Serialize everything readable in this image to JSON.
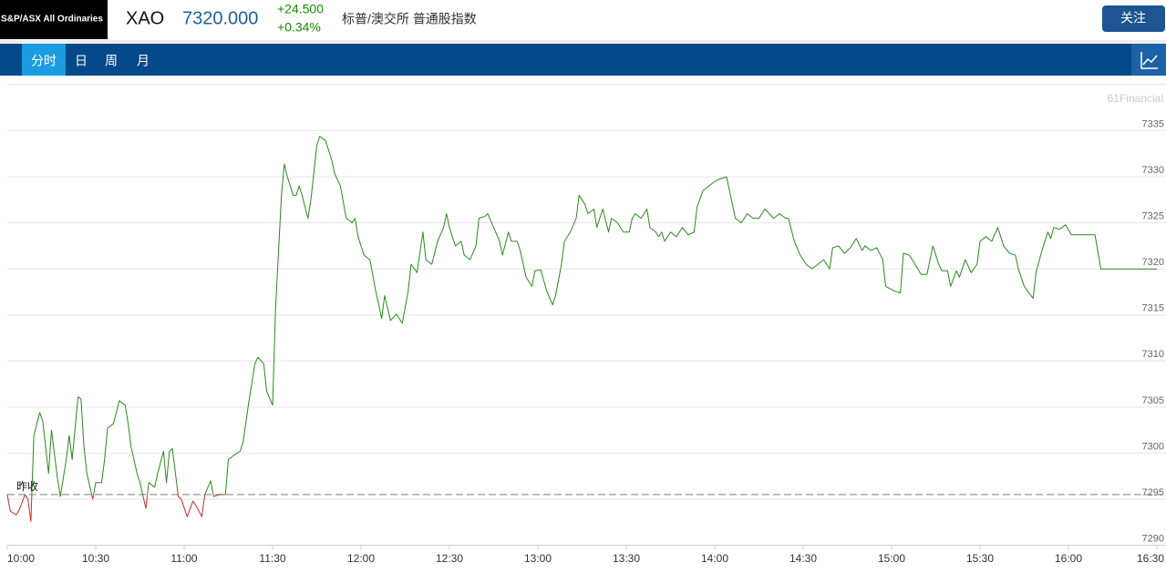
{
  "header": {
    "logo": "S&P/ASX All Ordinaries",
    "symbol": "XAO",
    "price": "7320.000",
    "change": "+24.500",
    "change_pct": "+0.34%",
    "name": "标普/澳交所 普通股指数",
    "button": "关注"
  },
  "tabs": [
    "分时",
    "日",
    "周",
    "月"
  ],
  "watermark": "61Financial",
  "chart_data": {
    "type": "line",
    "x": [
      "10:00",
      "10:01",
      "10:03",
      "10:04",
      "10:06",
      "10:07",
      "10:08",
      "10:09",
      "10:11",
      "10:12",
      "10:14",
      "10:15",
      "10:17",
      "10:18",
      "10:20",
      "10:21",
      "10:22",
      "10:24",
      "10:25",
      "10:26",
      "10:27",
      "10:29",
      "10:30",
      "10:32",
      "10:33",
      "10:34",
      "10:36",
      "10:38",
      "10:40",
      "10:41",
      "10:42",
      "10:44",
      "10:45",
      "10:47",
      "10:48",
      "10:50",
      "10:51",
      "10:53",
      "10:54",
      "10:55",
      "10:56",
      "10:58",
      "10:59",
      "11:01",
      "11:03",
      "11:04",
      "11:06",
      "11:07",
      "11:09",
      "11:10",
      "11:12",
      "11:14",
      "11:15",
      "11:17",
      "11:19",
      "11:20",
      "11:22",
      "11:24",
      "11:25",
      "11:27",
      "11:28",
      "11:30",
      "11:31",
      "11:33",
      "11:34",
      "11:35",
      "11:37",
      "11:38",
      "11:39",
      "11:40",
      "11:42",
      "11:43",
      "11:45",
      "11:46",
      "11:48",
      "11:50",
      "11:51",
      "11:53",
      "11:55",
      "11:57",
      "11:58",
      "11:59",
      "12:01",
      "12:03",
      "12:05",
      "12:07",
      "12:08",
      "12:10",
      "12:12",
      "12:14",
      "12:16",
      "12:17",
      "12:19",
      "12:21",
      "12:22",
      "12:24",
      "12:26",
      "12:28",
      "12:29",
      "12:30",
      "12:32",
      "12:34",
      "12:35",
      "12:37",
      "12:39",
      "12:40",
      "12:42",
      "12:43",
      "12:45",
      "12:47",
      "12:48",
      "12:50",
      "12:51",
      "12:53",
      "12:54",
      "12:56",
      "12:58",
      "12:59",
      "13:01",
      "13:03",
      "13:05",
      "13:06",
      "13:08",
      "13:09",
      "13:11",
      "13:13",
      "13:14",
      "13:16",
      "13:17",
      "13:19",
      "13:20",
      "13:22",
      "13:24",
      "13:25",
      "13:27",
      "13:29",
      "13:31",
      "13:32",
      "13:33",
      "13:35",
      "13:37",
      "13:38",
      "13:40",
      "13:41",
      "13:42",
      "13:43",
      "13:45",
      "13:47",
      "13:49",
      "13:51",
      "13:53",
      "13:54",
      "13:56",
      "13:58",
      "14:00",
      "14:02",
      "14:04",
      "14:05",
      "14:07",
      "14:09",
      "14:11",
      "14:13",
      "14:15",
      "14:17",
      "14:20",
      "14:22",
      "14:24",
      "14:25",
      "14:27",
      "14:29",
      "14:31",
      "14:33",
      "14:35",
      "14:37",
      "14:39",
      "14:40",
      "14:42",
      "14:44",
      "14:46",
      "14:48",
      "14:50",
      "14:51",
      "14:53",
      "14:55",
      "14:57",
      "14:58",
      "15:01",
      "15:03",
      "15:04",
      "15:06",
      "15:08",
      "15:10",
      "15:12",
      "15:14",
      "15:16",
      "15:17",
      "15:19",
      "15:20",
      "15:22",
      "15:23",
      "15:25",
      "15:27",
      "15:29",
      "15:30",
      "15:32",
      "15:34",
      "15:36",
      "15:38",
      "15:40",
      "15:42",
      "15:43",
      "15:45",
      "15:48",
      "15:49",
      "15:51",
      "15:53",
      "15:54",
      "15:55",
      "15:57",
      "15:59",
      "16:01",
      "16:09",
      "16:11",
      "16:30"
    ],
    "values": [
      7295.5,
      7293.7,
      7293.3,
      7293.8,
      7295.5,
      7295.0,
      7292.6,
      7301.9,
      7304.4,
      7303.5,
      7297.8,
      7302.5,
      7297.3,
      7295.3,
      7299.3,
      7301.9,
      7299.3,
      7306.1,
      7305.9,
      7300.7,
      7297.8,
      7295.0,
      7296.8,
      7296.8,
      7299.3,
      7302.7,
      7303.2,
      7305.7,
      7305.2,
      7303.2,
      7300.7,
      7297.8,
      7296.8,
      7294.0,
      7296.8,
      7296.3,
      7297.8,
      7300.2,
      7296.8,
      7300.2,
      7300.5,
      7295.3,
      7295.0,
      7293.1,
      7294.8,
      7294.3,
      7293.1,
      7295.5,
      7297.0,
      7295.3,
      7295.5,
      7295.5,
      7299.3,
      7299.8,
      7300.2,
      7301.2,
      7305.7,
      7309.7,
      7310.4,
      7309.7,
      7306.7,
      7305.2,
      7315.6,
      7328.0,
      7331.4,
      7330.0,
      7328.0,
      7328.0,
      7329.0,
      7328.0,
      7325.5,
      7327.5,
      7333.4,
      7334.4,
      7333.9,
      7331.9,
      7330.4,
      7329.0,
      7325.5,
      7325.0,
      7325.5,
      7323.5,
      7321.5,
      7321.0,
      7317.6,
      7314.6,
      7317.1,
      7314.4,
      7315.1,
      7314.1,
      7317.6,
      7320.5,
      7319.6,
      7324.0,
      7321.0,
      7320.5,
      7323.0,
      7324.5,
      7326.0,
      7324.5,
      7322.5,
      7323.0,
      7321.5,
      7321.0,
      7322.5,
      7325.5,
      7325.7,
      7326.0,
      7324.5,
      7323.0,
      7321.5,
      7324.0,
      7323.0,
      7323.0,
      7322.0,
      7319.1,
      7318.1,
      7319.8,
      7319.9,
      7317.6,
      7316.1,
      7317.1,
      7320.5,
      7323.0,
      7324.0,
      7325.5,
      7328.0,
      7327.0,
      7326.0,
      7326.5,
      7324.5,
      7326.5,
      7324.0,
      7325.5,
      7325.0,
      7324.0,
      7324.0,
      7325.5,
      7326.0,
      7325.5,
      7326.5,
      7324.5,
      7324.0,
      7323.5,
      7324.0,
      7323.0,
      7324.0,
      7323.5,
      7324.5,
      7323.7,
      7324.0,
      7326.7,
      7328.5,
      7329.0,
      7329.5,
      7329.8,
      7330.0,
      7328.5,
      7325.5,
      7325.0,
      7326.0,
      7325.5,
      7325.5,
      7326.5,
      7325.5,
      7326.0,
      7325.5,
      7325.5,
      7323.0,
      7321.5,
      7320.5,
      7320.0,
      7320.5,
      7321.0,
      7320.0,
      7322.3,
      7322.5,
      7321.7,
      7322.3,
      7323.3,
      7322.0,
      7322.5,
      7322.0,
      7322.3,
      7321.0,
      7318.1,
      7317.6,
      7317.4,
      7321.7,
      7321.5,
      7320.5,
      7319.4,
      7319.4,
      7322.5,
      7320.5,
      7319.8,
      7319.8,
      7318.1,
      7319.8,
      7319.1,
      7321.0,
      7319.6,
      7320.5,
      7323.0,
      7323.5,
      7323.0,
      7324.5,
      7322.5,
      7321.7,
      7321.5,
      7320.0,
      7318.1,
      7316.8,
      7319.6,
      7322.0,
      7324.0,
      7323.3,
      7324.5,
      7324.3,
      7324.8,
      7323.7,
      7323.7,
      7320.0,
      7320.0
    ],
    "color": "#2a8a1e",
    "down_color": "#d42a2a",
    "reference_line": {
      "label": "昨收",
      "value": 7295.5
    },
    "xlim": [
      "10:00",
      "16:30"
    ],
    "xticks": [
      "10:00",
      "10:30",
      "11:00",
      "11:30",
      "12:00",
      "12:30",
      "13:00",
      "13:30",
      "14:00",
      "14:30",
      "15:00",
      "15:30",
      "16:00",
      "16:30"
    ],
    "ylim": [
      7290,
      7340
    ],
    "yticks": [
      7290,
      7295,
      7300,
      7305,
      7310,
      7315,
      7320,
      7325,
      7330,
      7335
    ],
    "grid": true
  }
}
